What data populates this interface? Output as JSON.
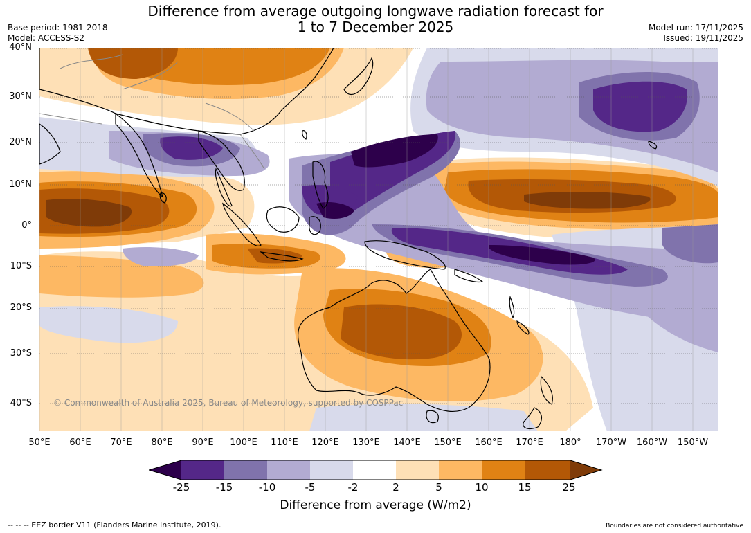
{
  "title_line1": "Difference from average outgoing longwave radiation forecast for",
  "title_line2": "1 to 7 December 2025",
  "base_period": "Base period: 1981-2018",
  "model": "Model: ACCESS-S2",
  "model_run": "Model run: 17/11/2025",
  "issued": "Issued: 19/11/2025",
  "copyright": "© Commonwealth of Australia 2025, Bureau of Meteorology, supported by COSPPac",
  "lat_labels": [
    "40°N",
    "30°N",
    "20°N",
    "10°N",
    "0°",
    "10°S",
    "20°S",
    "30°S",
    "40°S"
  ],
  "lon_labels": [
    "50°E",
    "60°E",
    "70°E",
    "80°E",
    "90°E",
    "100°E",
    "110°E",
    "120°E",
    "130°E",
    "140°E",
    "150°E",
    "160°E",
    "170°E",
    "180°",
    "170°W",
    "160°W",
    "150°W"
  ],
  "colorbar": {
    "title": "Difference from average (W/m2)",
    "ticks": [
      "-25",
      "-15",
      "-10",
      "-5",
      "-2",
      "2",
      "5",
      "10",
      "15",
      "25"
    ],
    "colors": [
      "#2d004b",
      "#542788",
      "#8073ac",
      "#b2abd2",
      "#d8daeb",
      "#ffffff",
      "#fee0b6",
      "#fdb863",
      "#e08214",
      "#b35806",
      "#7f3b08"
    ]
  },
  "footer_left": "--  --  -- EEZ border V11 (Flanders Marine Institute, 2019).",
  "footer_right": "Boundaries are not considered authoritative"
}
